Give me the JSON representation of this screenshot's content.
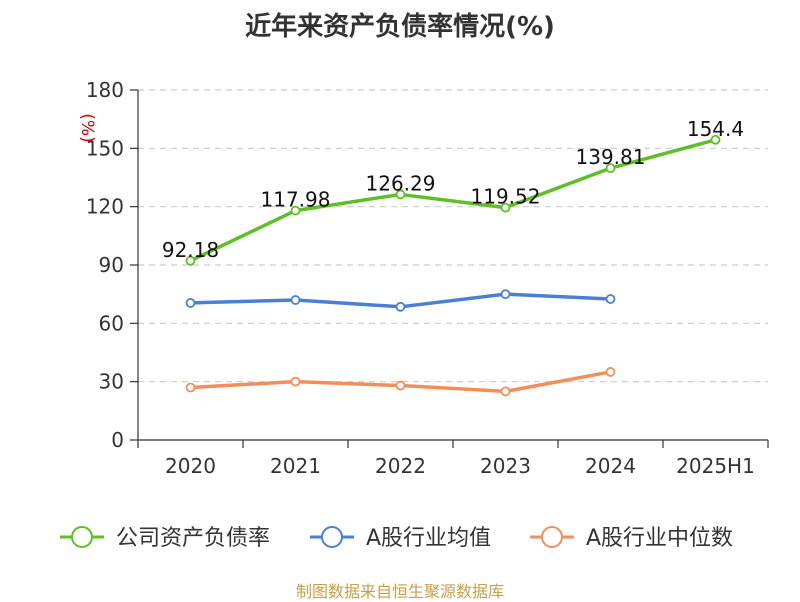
{
  "chart_data": {
    "type": "line",
    "title": "近年来资产负债率情况(%)",
    "ylabel": "(%)",
    "categories": [
      "2020",
      "2021",
      "2022",
      "2023",
      "2024",
      "2025H1"
    ],
    "ylim": [
      0,
      180
    ],
    "yticks": [
      0,
      30,
      60,
      90,
      120,
      150,
      180
    ],
    "grid": true,
    "legend_position": "bottom",
    "series": [
      {
        "name": "公司资产负债率",
        "color": "#5cc025",
        "values": [
          92.18,
          117.98,
          126.29,
          119.52,
          139.81,
          154.4
        ],
        "labels": [
          "92.18",
          "117.98",
          "126.29",
          "119.52",
          "139.81",
          "154.4"
        ]
      },
      {
        "name": "A股行业均值",
        "color": "#4a7fd4",
        "values": [
          70.5,
          72,
          68.5,
          75,
          72.5,
          null
        ]
      },
      {
        "name": "A股行业中位数",
        "color": "#f28e5b",
        "values": [
          27,
          30,
          28,
          25,
          35,
          null
        ]
      }
    ]
  },
  "source": "制图数据来自恒生聚源数据库"
}
